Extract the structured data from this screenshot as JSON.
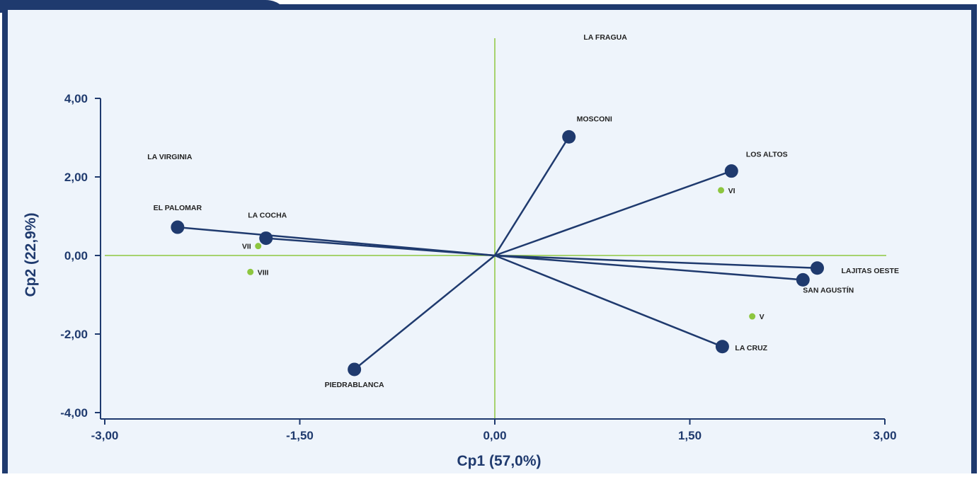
{
  "colors": {
    "frame": "#1f3a6e",
    "plot_bg": "#eef4fb",
    "vector": "#1f3a6e",
    "point": "#8dc63f",
    "zero_line": "#8dc63f",
    "text": "#1f3a6e"
  },
  "chart_data": {
    "type": "scatter",
    "subtype": "pca-biplot",
    "title": "",
    "xlabel": "Cp1 (57,0%)",
    "ylabel": "Cp2 (22,9%)",
    "xlim": [
      -3,
      3
    ],
    "ylim": [
      -4,
      4
    ],
    "x_ticks": [
      -3,
      -1.5,
      0,
      1.5,
      3
    ],
    "x_tick_labels": [
      "-3,00",
      "-1,50",
      "0,00",
      "1,50",
      "3,00"
    ],
    "y_ticks": [
      -4,
      -2,
      0,
      2,
      4
    ],
    "y_tick_labels": [
      "-4,00",
      "-2,00",
      "0,00",
      "2,00",
      "4,00"
    ],
    "grid": false,
    "legend": "none",
    "series": [
      {
        "kind": "vectors",
        "points": [
          {
            "label": "MOSCONI",
            "x": 0.57,
            "y": 3.02
          },
          {
            "label": "LOS ALTOS",
            "x": 1.82,
            "y": 2.15
          },
          {
            "label": "EL PALOMAR",
            "x": -2.44,
            "y": 0.72
          },
          {
            "label": "LA COCHA",
            "x": -1.76,
            "y": 0.44
          },
          {
            "label": "LAJITAS OESTE",
            "x": 2.48,
            "y": -0.32
          },
          {
            "label": "SAN AGUSTÍN",
            "x": 2.37,
            "y": -0.62
          },
          {
            "label": "LA CRUZ",
            "x": 1.75,
            "y": -2.32
          },
          {
            "label": "PIEDRABLANCA",
            "x": -1.08,
            "y": -2.9
          }
        ]
      },
      {
        "kind": "points",
        "points": [
          {
            "label": "VI",
            "x": 1.74,
            "y": 1.66
          },
          {
            "label": "VII",
            "x": -1.82,
            "y": 0.24
          },
          {
            "label": "VIII",
            "x": -1.88,
            "y": -0.42
          },
          {
            "label": "V",
            "x": 1.98,
            "y": -1.55
          }
        ]
      }
    ],
    "annotations": [
      {
        "text": "LA FRAGUA",
        "x": 0.85,
        "y": 5.5
      },
      {
        "text": "LA VIRGINIA",
        "x": -2.5,
        "y": 2.45
      }
    ]
  }
}
